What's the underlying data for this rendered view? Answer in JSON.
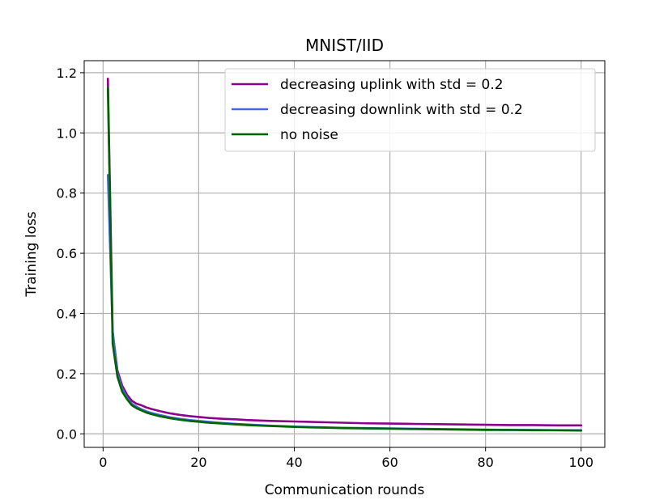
{
  "chart_data": {
    "type": "line",
    "title": "MNIST/IID",
    "xlabel": "Communication rounds",
    "ylabel": "Training loss",
    "xlim": [
      -3.95,
      104.95
    ],
    "ylim": [
      -0.045,
      1.24
    ],
    "xticks": [
      0,
      20,
      40,
      60,
      80,
      100
    ],
    "xtick_labels": [
      "0",
      "20",
      "40",
      "60",
      "80",
      "100"
    ],
    "yticks": [
      0.0,
      0.2,
      0.4,
      0.6,
      0.8,
      1.0,
      1.2
    ],
    "ytick_labels": [
      "0.0",
      "0.2",
      "0.4",
      "0.6",
      "0.8",
      "1.0",
      "1.2"
    ],
    "grid": true,
    "legend_position": "upper-right",
    "series": [
      {
        "name": "decreasing uplink with std = 0.2",
        "color": "#8B008B",
        "x": [
          1,
          2,
          3,
          4,
          5,
          6,
          7,
          8,
          9,
          10,
          12,
          14,
          16,
          18,
          20,
          22,
          25,
          28,
          30,
          35,
          40,
          45,
          50,
          55,
          60,
          65,
          70,
          75,
          80,
          85,
          90,
          95,
          100
        ],
        "y": [
          1.18,
          0.34,
          0.21,
          0.16,
          0.13,
          0.11,
          0.1,
          0.095,
          0.088,
          0.083,
          0.075,
          0.068,
          0.063,
          0.059,
          0.056,
          0.053,
          0.05,
          0.048,
          0.046,
          0.043,
          0.041,
          0.039,
          0.037,
          0.035,
          0.034,
          0.033,
          0.032,
          0.031,
          0.03,
          0.029,
          0.029,
          0.028,
          0.028
        ]
      },
      {
        "name": "decreasing downlink with std = 0.2",
        "color": "#4169E1",
        "x": [
          1,
          2,
          3,
          4,
          5,
          6,
          7,
          8,
          9,
          10,
          12,
          14,
          16,
          18,
          20,
          22,
          25,
          28,
          30,
          35,
          40,
          45,
          50,
          55,
          60,
          65,
          70,
          75,
          80,
          85,
          90,
          95,
          100
        ],
        "y": [
          0.86,
          0.34,
          0.2,
          0.15,
          0.12,
          0.1,
          0.09,
          0.082,
          0.075,
          0.07,
          0.062,
          0.055,
          0.05,
          0.046,
          0.043,
          0.04,
          0.036,
          0.033,
          0.031,
          0.027,
          0.024,
          0.022,
          0.02,
          0.019,
          0.018,
          0.017,
          0.016,
          0.015,
          0.014,
          0.013,
          0.013,
          0.012,
          0.012
        ]
      },
      {
        "name": "no noise",
        "color": "#006400",
        "x": [
          1,
          2,
          3,
          4,
          5,
          6,
          7,
          8,
          9,
          10,
          12,
          14,
          16,
          18,
          20,
          22,
          25,
          28,
          30,
          35,
          40,
          45,
          50,
          55,
          60,
          65,
          70,
          75,
          80,
          85,
          90,
          95,
          100
        ],
        "y": [
          1.15,
          0.3,
          0.19,
          0.14,
          0.115,
          0.095,
          0.085,
          0.078,
          0.071,
          0.066,
          0.058,
          0.052,
          0.047,
          0.043,
          0.04,
          0.037,
          0.034,
          0.031,
          0.029,
          0.026,
          0.023,
          0.021,
          0.019,
          0.018,
          0.017,
          0.016,
          0.015,
          0.014,
          0.013,
          0.013,
          0.012,
          0.012,
          0.011
        ]
      }
    ]
  }
}
